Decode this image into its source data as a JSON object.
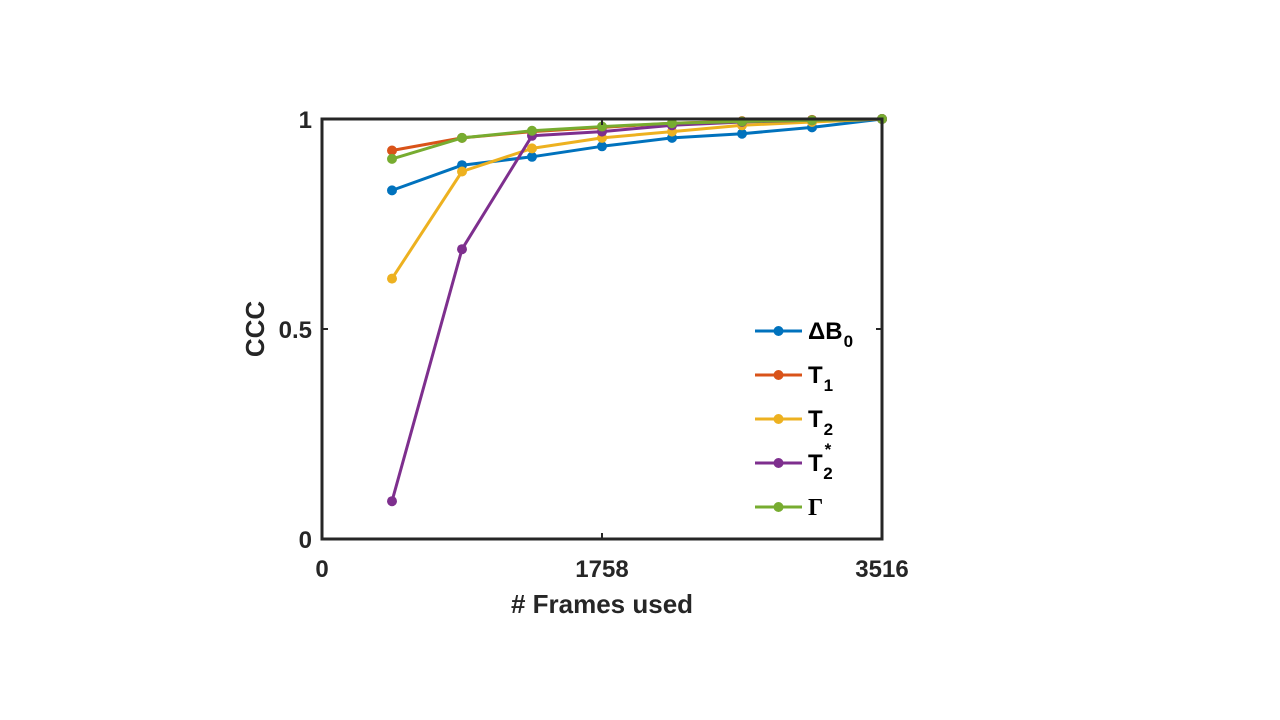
{
  "chart_data": {
    "type": "line",
    "xlabel": "# Frames used",
    "ylabel": "CCC",
    "xlim": [
      0,
      3516
    ],
    "ylim": [
      0,
      1
    ],
    "x_ticks": [
      0,
      1758,
      3516
    ],
    "x_tick_labels": [
      "0",
      "1758",
      "3516"
    ],
    "y_ticks": [
      0,
      0.5,
      1
    ],
    "y_tick_labels": [
      "0",
      "0.5",
      "1"
    ],
    "grid": false,
    "legend_position": "bottom-right",
    "x": [
      439.5,
      879,
      1318.5,
      1758,
      2197.5,
      2637,
      3076.5,
      3516
    ],
    "series": [
      {
        "name": "ΔB0",
        "label_main": "ΔB",
        "label_sub": "0",
        "label_sup": "",
        "color": "#0072BD",
        "values": [
          0.83,
          0.89,
          0.91,
          0.935,
          0.955,
          0.965,
          0.98,
          1.0
        ]
      },
      {
        "name": "T1",
        "label_main": "T",
        "label_sub": "1",
        "label_sup": "",
        "color": "#D95319",
        "values": [
          0.925,
          0.955,
          0.97,
          0.98,
          0.99,
          0.995,
          0.998,
          1.0
        ]
      },
      {
        "name": "T2",
        "label_main": "T",
        "label_sub": "2",
        "label_sup": "",
        "color": "#EDB120",
        "values": [
          0.62,
          0.875,
          0.93,
          0.955,
          0.97,
          0.985,
          0.993,
          1.0
        ]
      },
      {
        "name": "T2*",
        "label_main": "T",
        "label_sub": "2",
        "label_sup": "*",
        "color": "#7E2F8E",
        "values": [
          0.09,
          0.69,
          0.96,
          0.97,
          0.985,
          0.993,
          0.997,
          1.0
        ]
      },
      {
        "name": "Γ",
        "label_main": "Γ",
        "label_sub": "",
        "label_sup": "",
        "color": "#77AC30",
        "values": [
          0.905,
          0.955,
          0.972,
          0.982,
          0.99,
          0.994,
          0.997,
          1.0
        ]
      }
    ]
  }
}
